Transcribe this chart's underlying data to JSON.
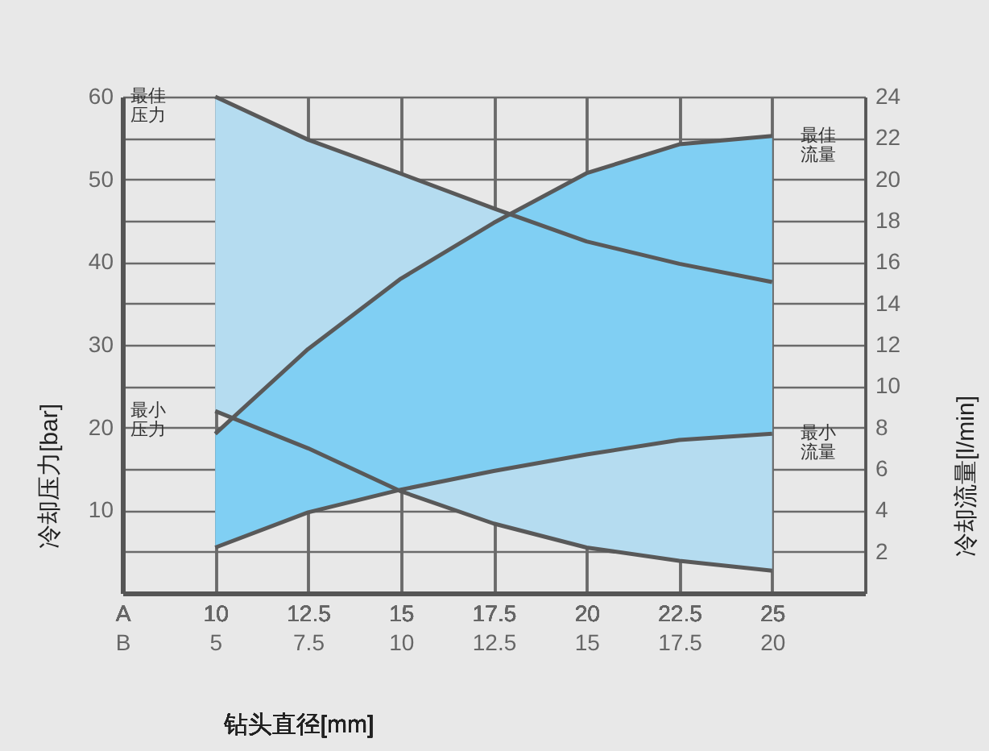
{
  "chart_data": {
    "type": "line",
    "xlabel": "钻头直径[mm]",
    "ylabel": "冷却压力[bar]",
    "y2label": "冷却流量[l/min]",
    "x": [
      10,
      12.5,
      15,
      17.5,
      20,
      22.5,
      25
    ],
    "series": [
      {
        "name": "最佳压力",
        "type": "area",
        "color": "#b5dcf0",
        "values": [
          60,
          54.8,
          50.7,
          46.5,
          42.5,
          39.8,
          37.6
        ]
      },
      {
        "name": "最小压力",
        "color": "#595959",
        "values": [
          22,
          17.5,
          12.3,
          8.4,
          5.5,
          3.9,
          2.7
        ]
      },
      {
        "name": "最佳流量",
        "type": "area",
        "axis": "y2",
        "color": "#80cff3",
        "values": [
          7.7,
          11.8,
          15.2,
          17.9,
          20.3,
          21.7,
          22.1
        ]
      },
      {
        "name": "最小流量",
        "axis": "y2",
        "color": "#595959",
        "values": [
          2.2,
          3.9,
          5,
          5.9,
          6.7,
          7.4,
          7.7
        ]
      }
    ],
    "xlim": [
      7.5,
      27.5
    ],
    "xticks": [
      {
        "value": 7.5,
        "label": "A"
      },
      10,
      12.5,
      15,
      17.5,
      20,
      22.5,
      25,
      {
        "value": 27.5,
        "label": null
      }
    ],
    "x2lim": [
      2.5,
      22.5
    ],
    "x2ticks": [
      {
        "value": 2.5,
        "label": "B"
      },
      5,
      7.5,
      10,
      12.5,
      15,
      17.5,
      20
    ],
    "ylim": [
      0,
      60
    ],
    "yticks": [
      {
        "value": 5,
        "label": null
      },
      10,
      {
        "value": 15,
        "label": null
      },
      20,
      {
        "value": 25,
        "label": null
      },
      30,
      {
        "value": 35,
        "label": null
      },
      40,
      {
        "value": 45,
        "label": null
      },
      50,
      {
        "value": 55,
        "label": null
      },
      60
    ],
    "y2lim": [
      0,
      24
    ],
    "y2ticks": [
      2,
      4,
      6,
      8,
      10,
      12,
      14,
      16,
      18,
      20,
      22,
      24
    ],
    "grid": true,
    "legend": false
  }
}
